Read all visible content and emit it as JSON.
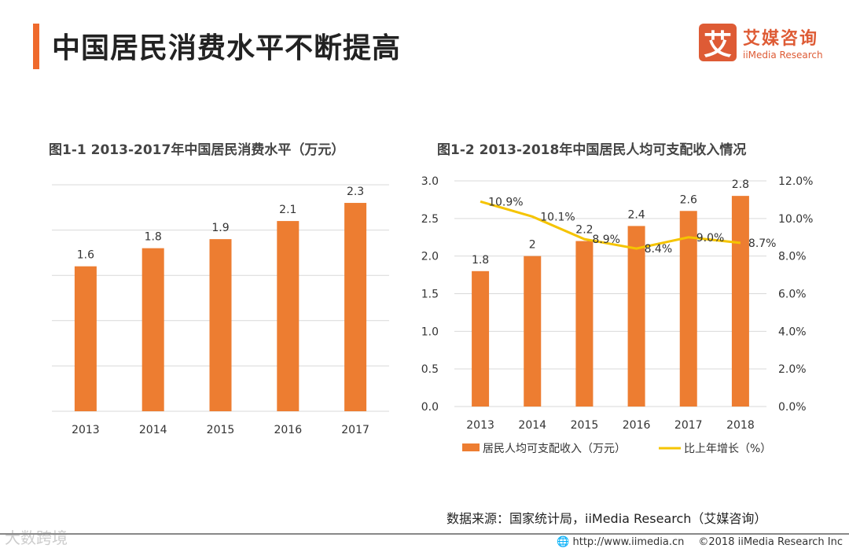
{
  "header": {
    "title": "中国居民消费水平不断提高",
    "logo_mark": "艾",
    "logo_cn": "艾媒咨询",
    "logo_en": "iiMedia Research"
  },
  "colors": {
    "bar": "#ed7d31",
    "line": "#f5c400",
    "accent": "#ef6a2c"
  },
  "chart_data": [
    {
      "type": "bar",
      "title": "图1-1 2013-2017年中国居民消费水平（万元）",
      "categories": [
        "2013",
        "2014",
        "2015",
        "2016",
        "2017"
      ],
      "values": [
        1.6,
        1.8,
        1.9,
        2.1,
        2.3
      ],
      "ylim": [
        0,
        2.5
      ],
      "grid": true
    },
    {
      "type": "bar+line",
      "title": "图1-2 2013-2018年中国居民人均可支配收入情况",
      "categories": [
        "2013",
        "2014",
        "2015",
        "2016",
        "2017",
        "2018"
      ],
      "series": [
        {
          "name": "居民人均可支配收入（万元）",
          "type": "bar",
          "axis": "left",
          "values": [
            1.8,
            2,
            2.2,
            2.4,
            2.6,
            2.8
          ],
          "labels": [
            "1.8",
            "2",
            "2.2",
            "2.4",
            "2.6",
            "2.8"
          ]
        },
        {
          "name": "比上年增长（%）",
          "type": "line",
          "axis": "right",
          "values": [
            10.9,
            10.1,
            8.9,
            8.4,
            9.0,
            8.7
          ],
          "labels": [
            "10.9%",
            "10.1%",
            "8.9%",
            "8.4%",
            "9.0%",
            "8.7%"
          ]
        }
      ],
      "ylim": [
        0,
        3.0
      ],
      "y_ticks": [
        "0.0",
        "0.5",
        "1.0",
        "1.5",
        "2.0",
        "2.5",
        "3.0"
      ],
      "y2lim": [
        0,
        12
      ],
      "y2_ticks": [
        "0.0%",
        "2.0%",
        "4.0%",
        "6.0%",
        "8.0%",
        "10.0%",
        "12.0%"
      ],
      "legend": "bottom",
      "grid": true
    }
  ],
  "footer": {
    "source": "数据来源：国家统计局，iiMedia Research（艾媒咨询）",
    "url": "http://www.iimedia.cn",
    "copyright": "©2018  iiMedia Research  Inc",
    "watermark": "大数跨境"
  }
}
